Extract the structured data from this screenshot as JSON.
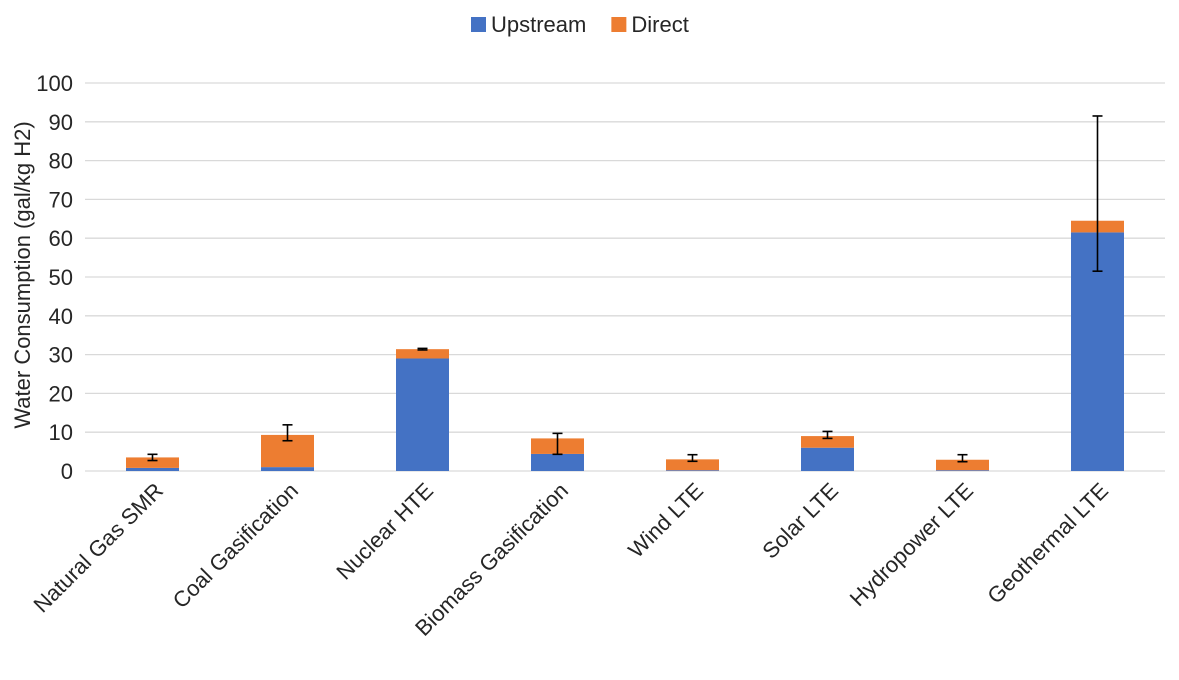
{
  "chart_data": {
    "type": "bar",
    "stacked": true,
    "title": "",
    "xlabel": "",
    "ylabel": "Water Consumption (gal/kg H2)",
    "ylim": [
      0,
      100
    ],
    "yticks": [
      0,
      10,
      20,
      30,
      40,
      50,
      60,
      70,
      80,
      90,
      100
    ],
    "grid": true,
    "legend_position": "top",
    "categories": [
      "Natural Gas SMR",
      "Coal Gasification",
      "Nuclear HTE",
      "Biomass Gasification",
      "Wind LTE",
      "Solar LTE",
      "Hydropower LTE",
      "Geothermal LTE"
    ],
    "series": [
      {
        "name": "Upstream",
        "color": "#4472C4",
        "values": [
          0.8,
          1.0,
          29.0,
          4.4,
          0.2,
          6.0,
          0.2,
          61.5
        ]
      },
      {
        "name": "Direct",
        "color": "#ED7D31",
        "values": [
          2.7,
          8.3,
          2.4,
          4.0,
          2.8,
          3.0,
          2.7,
          3.0
        ]
      }
    ],
    "error_bars": {
      "color": "#000000",
      "ranges": [
        [
          2.7,
          4.3
        ],
        [
          7.8,
          11.9
        ],
        [
          31.2,
          31.6
        ],
        [
          4.3,
          9.7
        ],
        [
          2.5,
          4.2
        ],
        [
          8.4,
          10.2
        ],
        [
          2.4,
          4.2
        ],
        [
          51.5,
          91.5
        ]
      ]
    }
  }
}
